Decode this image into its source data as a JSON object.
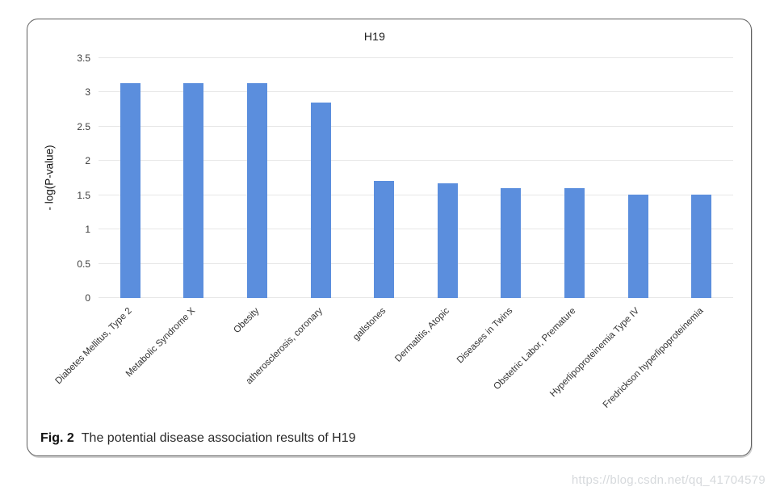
{
  "figure": {
    "caption_label": "Fig. 2",
    "caption_text": "The potential disease association results of H19"
  },
  "watermark": "https://blog.csdn.net/qq_41704579",
  "chart_data": {
    "type": "bar",
    "title": "H19",
    "xlabel": "",
    "ylabel": "- log(P-value)",
    "categories": [
      "Diabetes Mellitus, Type 2",
      "Metabolic Syndrome X",
      "Obesity",
      "atherosclerosis, coronary",
      "gallstones",
      "Dermatitis, Atopic",
      "Diseases in Twins",
      "Obstetric Labor, Premature",
      "Hyperlipoproteinemia Type IV",
      "Fredrickson hyperlipoproteinemia"
    ],
    "values": [
      3.14,
      3.14,
      3.14,
      2.85,
      1.71,
      1.67,
      1.6,
      1.6,
      1.51,
      1.51
    ],
    "ylim": [
      0,
      3.5
    ],
    "yticks": [
      0,
      0.5,
      1,
      1.5,
      2,
      2.5,
      3,
      3.5
    ],
    "grid": true,
    "legend_position": "none",
    "bar_color": "#5b8edd",
    "gridline_color": "#e7e7e7"
  }
}
